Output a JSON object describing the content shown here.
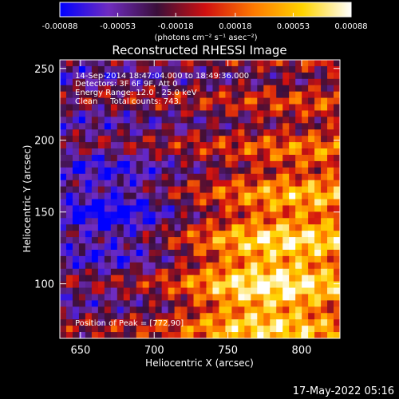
{
  "chart_data": {
    "type": "heatmap",
    "title": "Reconstructed RHESSI Image",
    "xlabel": "Heliocentric X (arcsec)",
    "ylabel": "Heliocentric Y (arcsec)",
    "xlim": [
      636,
      826
    ],
    "ylim": [
      62,
      256
    ],
    "x_ticks": [
      650,
      700,
      750,
      800
    ],
    "y_ticks": [
      100,
      150,
      200,
      250
    ],
    "x_tick_labels": [
      "650",
      "700",
      "750",
      "800"
    ],
    "y_tick_labels": [
      "100",
      "150",
      "200",
      "250"
    ],
    "colorbar": {
      "range": [
        -0.00088,
        0.00088
      ],
      "ticks": [
        -0.00088,
        -0.00053,
        -0.00018,
        0.00018,
        0.00053,
        0.00088
      ],
      "tick_labels": [
        "-0.00088",
        "-0.00053",
        "-0.00018",
        "0.00018",
        "0.00053",
        "0.00088"
      ],
      "unit_label": "(photons cm⁻² s⁻¹ asec⁻²)",
      "colors": [
        "#0000ff",
        "#6f2cc0",
        "#3a0f3a",
        "#d01010",
        "#ff7a00",
        "#ffd400",
        "#ffffff"
      ]
    },
    "annotations": [
      "14-Sep-2014 18:47:04.000 to 18:49:36.000",
      "Detectors: 3F 6F 9F, Att 0",
      "Energy Range: 12.0 - 25.0 keV",
      "Clean     Total counts: 743."
    ],
    "peak_label": "Position of Peak = [772,90]",
    "peak_position": [
      772,
      90
    ],
    "value_range": [
      -0.00088,
      0.00088
    ]
  },
  "footer": {
    "timestamp": "17-May-2022 05:16"
  }
}
